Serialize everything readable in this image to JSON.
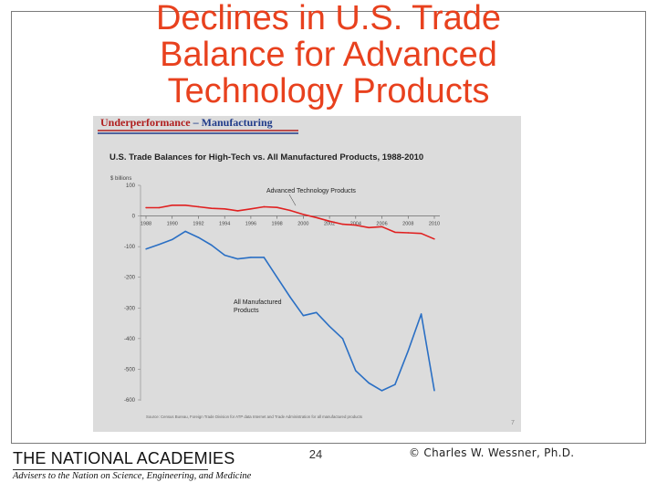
{
  "slide": {
    "title_lines": [
      "Declines in U.S. Trade",
      "Balance for Advanced",
      "Technology Products"
    ],
    "page_number": "24",
    "copyright": "© Charles W. Wessner, Ph.D."
  },
  "logo": {
    "name": "THE NATIONAL ACADEMIES",
    "tagline": "Advisers to the Nation on Science, Engineering, and Medicine"
  },
  "embedded_slide": {
    "header": "Underperformance",
    "header_dash": " – ",
    "header_topic": "Manufacturing",
    "footer_source": "Source: Census Bureau, Foreign Trade Division for ATP data Internet and Trade Administration for all manufactured products",
    "slide_number": "7"
  },
  "colors": {
    "title": "#e8411e",
    "header_red": "#b01e1e",
    "header_blue": "#1f3b8a",
    "ats_series": "#e02020",
    "manufactured_series": "#2a6fc4"
  },
  "chart_data": {
    "type": "line",
    "title": "U.S. Trade Balances for High-Tech vs. All Manufactured Products, 1988-2010",
    "ylabel": "$ billions",
    "xlabel": "",
    "ylim": [
      -600,
      100
    ],
    "yticks": [
      100,
      0,
      -100,
      -200,
      -300,
      -400,
      -500,
      -600
    ],
    "ytick_labels": [
      "100",
      "0",
      "-100",
      "-200",
      "-300",
      "-400",
      "-500",
      "-600"
    ],
    "xlim": [
      1988,
      2010
    ],
    "xticks": [
      1988,
      1990,
      1992,
      1994,
      1996,
      1998,
      2000,
      2002,
      2004,
      2006,
      2008,
      2010
    ],
    "xtick_labels": [
      "1988",
      "1990",
      "1992",
      "1994",
      "1996",
      "1998",
      "2000",
      "2002",
      "2004",
      "2006",
      "2008",
      "2010"
    ],
    "grid": false,
    "x": [
      1988,
      1989,
      1990,
      1991,
      1992,
      1993,
      1994,
      1995,
      1996,
      1997,
      1998,
      1999,
      2000,
      2001,
      2002,
      2003,
      2004,
      2005,
      2006,
      2007,
      2008,
      2009,
      2010
    ],
    "series": [
      {
        "name": "Advanced Technology Products",
        "label_lines": [
          "Advanced Technology Products"
        ],
        "color": "#e02020",
        "values": [
          27,
          27,
          35,
          35,
          30,
          25,
          23,
          17,
          23,
          30,
          28,
          18,
          5,
          -5,
          -17,
          -27,
          -30,
          -38,
          -35,
          -53,
          -55,
          -57,
          -75
        ]
      },
      {
        "name": "All Manufactured Products",
        "label_lines": [
          "All Manufactured",
          "Products"
        ],
        "color": "#2a6fc4",
        "values": [
          -108,
          -93,
          -77,
          -50,
          -70,
          -95,
          -128,
          -140,
          -135,
          -135,
          -200,
          -265,
          -325,
          -315,
          -360,
          -400,
          -505,
          -545,
          -570,
          -550,
          -440,
          -320,
          -570
        ]
      }
    ]
  }
}
